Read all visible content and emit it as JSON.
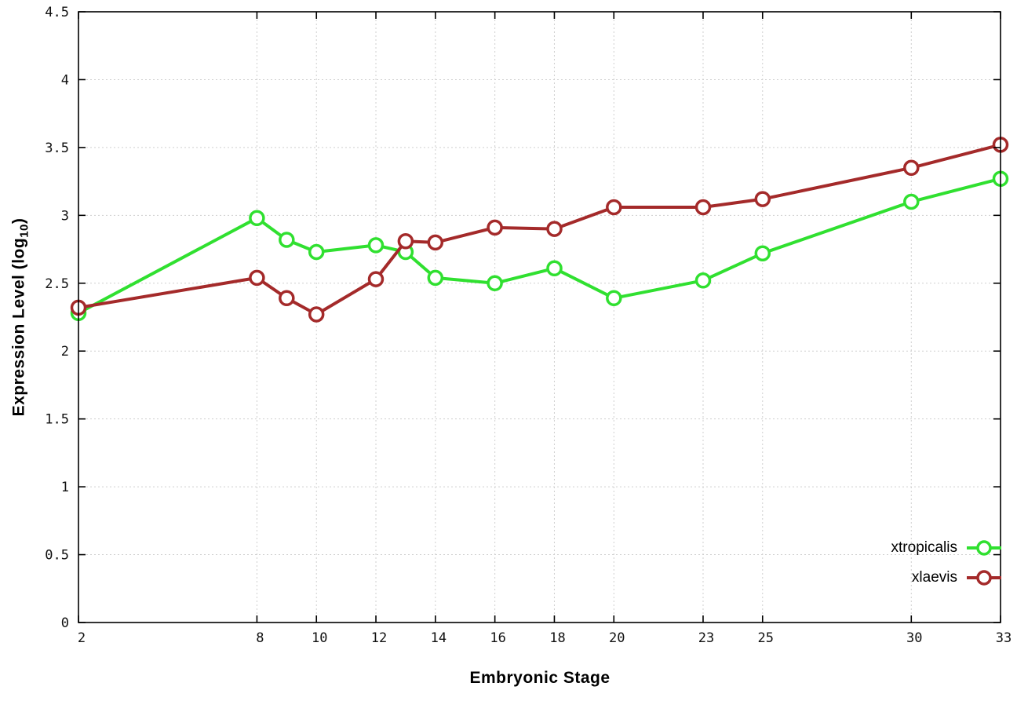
{
  "chart_data": {
    "type": "line",
    "title": "",
    "xlabel": "Embryonic Stage",
    "ylabel": "Expression Level (log10)",
    "ylabel_parts": {
      "prefix": "Expression Level (log",
      "sub": "10",
      "suffix": ")"
    },
    "x": [
      2,
      8,
      9,
      10,
      12,
      13,
      14,
      16,
      18,
      20,
      23,
      25,
      30,
      33
    ],
    "series": [
      {
        "name": "xtropicalis",
        "color": "#30e030",
        "values": [
          2.28,
          2.98,
          2.82,
          2.73,
          2.78,
          2.73,
          2.54,
          2.5,
          2.61,
          2.39,
          2.52,
          2.72,
          3.1,
          3.27
        ]
      },
      {
        "name": "xlaevis",
        "color": "#a42a2a",
        "values": [
          2.32,
          2.54,
          2.39,
          2.27,
          2.53,
          2.81,
          2.8,
          2.91,
          2.9,
          3.06,
          3.06,
          3.12,
          3.35,
          3.52
        ]
      }
    ],
    "xlim": [
      2,
      33
    ],
    "ylim": [
      0,
      4.5
    ],
    "xticks": [
      {
        "v": 2,
        "label": "2"
      },
      {
        "v": 8,
        "label": "8"
      },
      {
        "v": 10,
        "label": "10"
      },
      {
        "v": 12,
        "label": "12"
      },
      {
        "v": 14,
        "label": "14"
      },
      {
        "v": 16,
        "label": "16"
      },
      {
        "v": 18,
        "label": "18"
      },
      {
        "v": 20,
        "label": "20"
      },
      {
        "v": 23,
        "label": "23"
      },
      {
        "v": 25,
        "label": "25"
      },
      {
        "v": 30,
        "label": "30"
      },
      {
        "v": 33,
        "label": "33"
      }
    ],
    "yticks": [
      {
        "v": 0,
        "label": "0"
      },
      {
        "v": 0.5,
        "label": "0.5"
      },
      {
        "v": 1,
        "label": "1"
      },
      {
        "v": 1.5,
        "label": "1.5"
      },
      {
        "v": 2,
        "label": "2"
      },
      {
        "v": 2.5,
        "label": "2.5"
      },
      {
        "v": 3,
        "label": "3"
      },
      {
        "v": 3.5,
        "label": "3.5"
      },
      {
        "v": 4,
        "label": "4"
      },
      {
        "v": 4.5,
        "label": "4.5"
      }
    ],
    "grid": true,
    "legend_position": "bottom-right",
    "grid_color": "#cfcfcf",
    "border_color": "#000000",
    "tick_label_color": "#111111"
  }
}
